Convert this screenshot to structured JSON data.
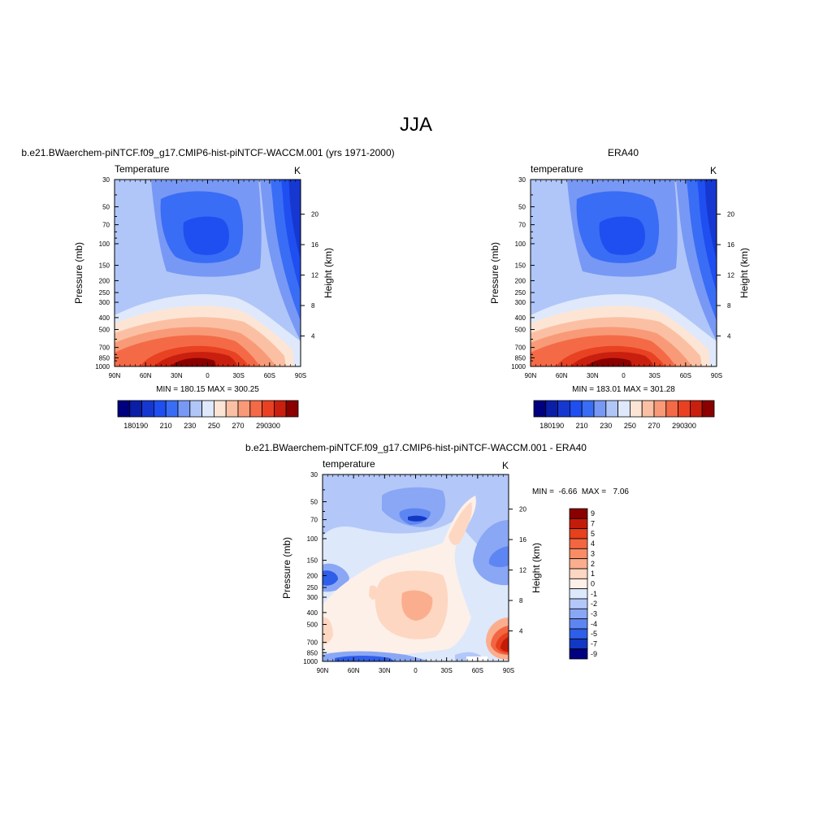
{
  "page": {
    "title": "JJA"
  },
  "panels": [
    {
      "id": "model",
      "case_title": "b.e21.BWaerchem-piNTCF.f09_g17.CMIP6-hist-piNTCF-WACCM.001 (yrs 1971-2000)",
      "var_label": "Temperature",
      "units": "K",
      "stats": "MIN = 180.15  MAX = 300.25"
    },
    {
      "id": "obs",
      "case_title": "ERA40",
      "var_label": "temperature",
      "units": "K",
      "stats": "MIN = 183.01  MAX = 301.28"
    },
    {
      "id": "diff",
      "case_title": "b.e21.BWaerchem-piNTCF.f09_g17.CMIP6-hist-piNTCF-WACCM.001 - ERA40",
      "var_label": "temperature",
      "units": "K",
      "stats": "MIN =  -6.66  MAX =   7.06"
    }
  ],
  "axes": {
    "ylabel": "Pressure (mb)",
    "ylabel_right": "Height (km)",
    "pressure_ticks": [
      "30",
      "50",
      "70",
      "100",
      "150",
      "200",
      "250",
      "300",
      "400",
      "500",
      "700",
      "850",
      "1000"
    ],
    "height_ticks": [
      "20",
      "16",
      "12",
      "8",
      "4"
    ],
    "lat_ticks": [
      "90N",
      "60N",
      "30N",
      "0",
      "30S",
      "60S",
      "90S"
    ]
  },
  "colorbars": {
    "abs_labels": [
      "180",
      "190",
      "210",
      "230",
      "250",
      "270",
      "290",
      "300"
    ],
    "abs_colors": [
      "#00007f",
      "#0b1ea8",
      "#1638d0",
      "#1f4ff0",
      "#3a6df5",
      "#7898f5",
      "#b0c6f8",
      "#dfe9fb",
      "#fde5d5",
      "#fbc0a4",
      "#f89a78",
      "#f46a47",
      "#e84222",
      "#c91f0f",
      "#8a0000"
    ],
    "diff_labels": [
      "9",
      "7",
      "5",
      "4",
      "3",
      "2",
      "1",
      "0",
      "-1",
      "-2",
      "-3",
      "-4",
      "-5",
      "-7",
      "-9"
    ],
    "diff_colors": [
      "#8a0000",
      "#c41c0a",
      "#e6401d",
      "#f26641",
      "#f88c66",
      "#fbae8e",
      "#fdd7c2",
      "#fdf0e8",
      "#dde8fb",
      "#b3c8f8",
      "#8aa7f5",
      "#5e86f2",
      "#2f5ee9",
      "#1238c4",
      "#000080"
    ]
  },
  "chart_data": [
    {
      "type": "heatmap",
      "title": "b.e21.BWaerchem-piNTCF.f09_g17.CMIP6-hist-piNTCF-WACCM.001 (yrs 1971-2000)",
      "subtitle": "Temperature",
      "xlabel": "",
      "ylabel": "Pressure (mb)",
      "y2label": "Height (km)",
      "units": "K",
      "x": [
        "90N",
        "60N",
        "30N",
        "0",
        "30S",
        "60S",
        "90S"
      ],
      "y": [
        30,
        50,
        70,
        100,
        150,
        200,
        250,
        300,
        400,
        500,
        700,
        850,
        1000
      ],
      "min": 180.15,
      "max": 300.25,
      "colorbar": [
        180,
        190,
        210,
        230,
        250,
        270,
        290,
        300
      ]
    },
    {
      "type": "heatmap",
      "title": "ERA40",
      "subtitle": "temperature",
      "xlabel": "",
      "ylabel": "Pressure (mb)",
      "y2label": "Height (km)",
      "units": "K",
      "x": [
        "90N",
        "60N",
        "30N",
        "0",
        "30S",
        "60S",
        "90S"
      ],
      "y": [
        30,
        50,
        70,
        100,
        150,
        200,
        250,
        300,
        400,
        500,
        700,
        850,
        1000
      ],
      "min": 183.01,
      "max": 301.28,
      "colorbar": [
        180,
        190,
        210,
        230,
        250,
        270,
        290,
        300
      ]
    },
    {
      "type": "heatmap",
      "title": "b.e21.BWaerchem-piNTCF.f09_g17.CMIP6-hist-piNTCF-WACCM.001 - ERA40",
      "subtitle": "temperature",
      "xlabel": "",
      "ylabel": "Pressure (mb)",
      "y2label": "Height (km)",
      "units": "K",
      "x": [
        "90N",
        "60N",
        "30N",
        "0",
        "30S",
        "60S",
        "90S"
      ],
      "y": [
        30,
        50,
        70,
        100,
        150,
        200,
        250,
        300,
        400,
        500,
        700,
        850,
        1000
      ],
      "min": -6.66,
      "max": 7.06,
      "colorbar": [
        9,
        7,
        5,
        4,
        3,
        2,
        1,
        0,
        -1,
        -2,
        -3,
        -4,
        -5,
        -7,
        -9
      ]
    }
  ]
}
